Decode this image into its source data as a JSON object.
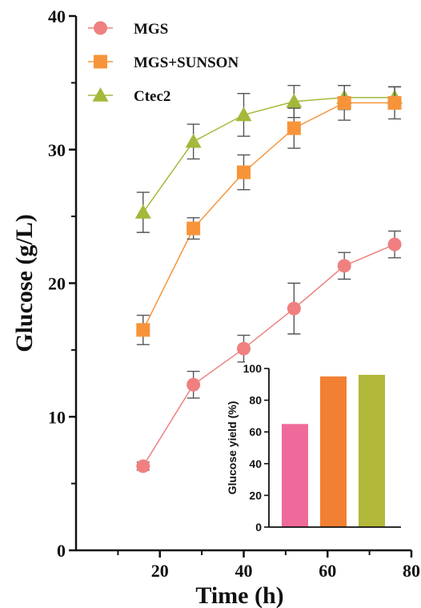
{
  "chart_data": [
    {
      "type": "line",
      "xlabel": "Time (h)",
      "ylabel": "Glucose (g/L)",
      "xlim": [
        0,
        80
      ],
      "ylim": [
        0,
        40
      ],
      "xticks": [
        20,
        40,
        60,
        80
      ],
      "yticks": [
        0,
        10,
        20,
        30,
        40
      ],
      "legend_position": "top-left",
      "x": [
        16,
        28,
        40,
        52,
        64,
        76
      ],
      "series": [
        {
          "name": "MGS",
          "marker": "circle",
          "color": "#f08080",
          "values": [
            6.3,
            12.4,
            15.1,
            18.1,
            21.3,
            22.9
          ],
          "errors": [
            0.3,
            1.0,
            1.0,
            1.9,
            1.0,
            1.0
          ]
        },
        {
          "name": "MGS+SUNSON",
          "marker": "square",
          "color": "#f7943a",
          "values": [
            16.5,
            24.1,
            28.3,
            31.6,
            33.5,
            33.5
          ],
          "errors": [
            1.1,
            0.8,
            1.3,
            1.5,
            1.3,
            1.2
          ]
        },
        {
          "name": "Ctec2",
          "marker": "triangle",
          "color": "#a6b83a",
          "values": [
            25.3,
            30.6,
            32.6,
            33.6,
            33.9,
            33.9
          ],
          "errors": [
            1.5,
            1.3,
            1.6,
            1.2,
            0.9,
            0.8
          ]
        }
      ]
    },
    {
      "type": "bar",
      "ylabel": "Glucose yield (%)",
      "ylim": [
        0,
        100
      ],
      "yticks": [
        0,
        20,
        40,
        60,
        80,
        100
      ],
      "categories": [
        "MGS",
        "MGS+SUNSON",
        "Ctec2"
      ],
      "values": [
        65,
        95,
        96
      ],
      "colors": [
        "#ee6a9a",
        "#f28033",
        "#b2b83a"
      ]
    }
  ]
}
